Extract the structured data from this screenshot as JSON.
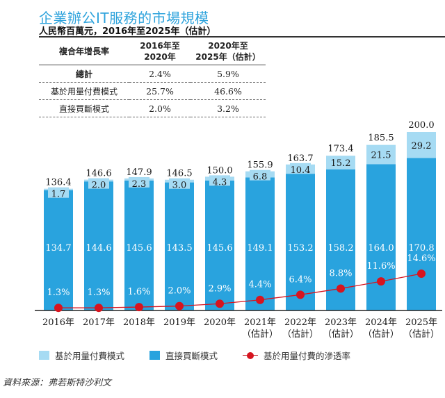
{
  "title": "企業辦公IT服務的市場規模",
  "subtitle": "人民幣百萬元，2016年至2025年（估計）",
  "cagr_table": {
    "headers": [
      "複合年增長率",
      "2016年至\n2020年",
      "2020年至\n2025年（估計）"
    ],
    "header_lines": [
      [
        "複合年增長率"
      ],
      [
        "2016年至",
        "2020年"
      ],
      [
        "2020年至",
        "2025年（估計）"
      ]
    ],
    "rows": [
      {
        "label": "總計",
        "v1": "2.4%",
        "v2": "5.9%"
      },
      {
        "label": "基於用量付費模式",
        "v1": "25.7%",
        "v2": "46.6%"
      },
      {
        "label": "直接買斷模式",
        "v1": "2.0%",
        "v2": "3.2%"
      }
    ]
  },
  "chart_data": {
    "type": "bar",
    "stacked": true,
    "title": "企業辦公IT服務的市場規模",
    "subtitle": "人民幣百萬元，2016年至2025年（估計）",
    "categories": [
      "2016年",
      "2017年",
      "2018年",
      "2019年",
      "2020年",
      "2021年\n（估計）",
      "2022年\n（估計）",
      "2023年\n（估計）",
      "2024年\n（估計）",
      "2025年\n（估計）"
    ],
    "category_lines": [
      [
        "2016年"
      ],
      [
        "2017年"
      ],
      [
        "2018年"
      ],
      [
        "2019年"
      ],
      [
        "2020年"
      ],
      [
        "2021年",
        "（估計）"
      ],
      [
        "2022年",
        "（估計）"
      ],
      [
        "2023年",
        "（估計）"
      ],
      [
        "2024年",
        "（估計）"
      ],
      [
        "2025年",
        "（估計）"
      ]
    ],
    "series": [
      {
        "name": "直接買斷模式",
        "color": "#29a3de",
        "values": [
          134.7,
          144.6,
          145.6,
          143.5,
          145.6,
          149.1,
          153.2,
          158.2,
          164.0,
          170.8
        ]
      },
      {
        "name": "基於用量付費模式",
        "color": "#a6dbf3",
        "values": [
          1.7,
          2.0,
          2.3,
          3.0,
          4.3,
          6.8,
          10.4,
          15.2,
          21.5,
          29.2
        ]
      }
    ],
    "totals": [
      136.4,
      146.6,
      147.9,
      146.5,
      150.0,
      155.9,
      163.7,
      173.4,
      185.5,
      200.0
    ],
    "line_series": {
      "name": "基於用量付費的滲透率",
      "color": "#d7141f",
      "unit": "%",
      "values": [
        1.3,
        1.3,
        1.6,
        2.0,
        2.9,
        4.4,
        6.4,
        8.8,
        11.6,
        14.6
      ]
    },
    "xlabel": "",
    "ylabel": "",
    "ylim": [
      0,
      200
    ],
    "grid": false,
    "legend_position": "bottom"
  },
  "legend": [
    {
      "label": "基於用量付費模式",
      "color": "#a6dbf3",
      "kind": "square"
    },
    {
      "label": "直接買斷模式",
      "color": "#29a3de",
      "kind": "square"
    },
    {
      "label": "基於用量付費的滲透率",
      "color": "#d7141f",
      "kind": "line-dot"
    }
  ],
  "source": "資料來源：弗若斯特沙利文"
}
